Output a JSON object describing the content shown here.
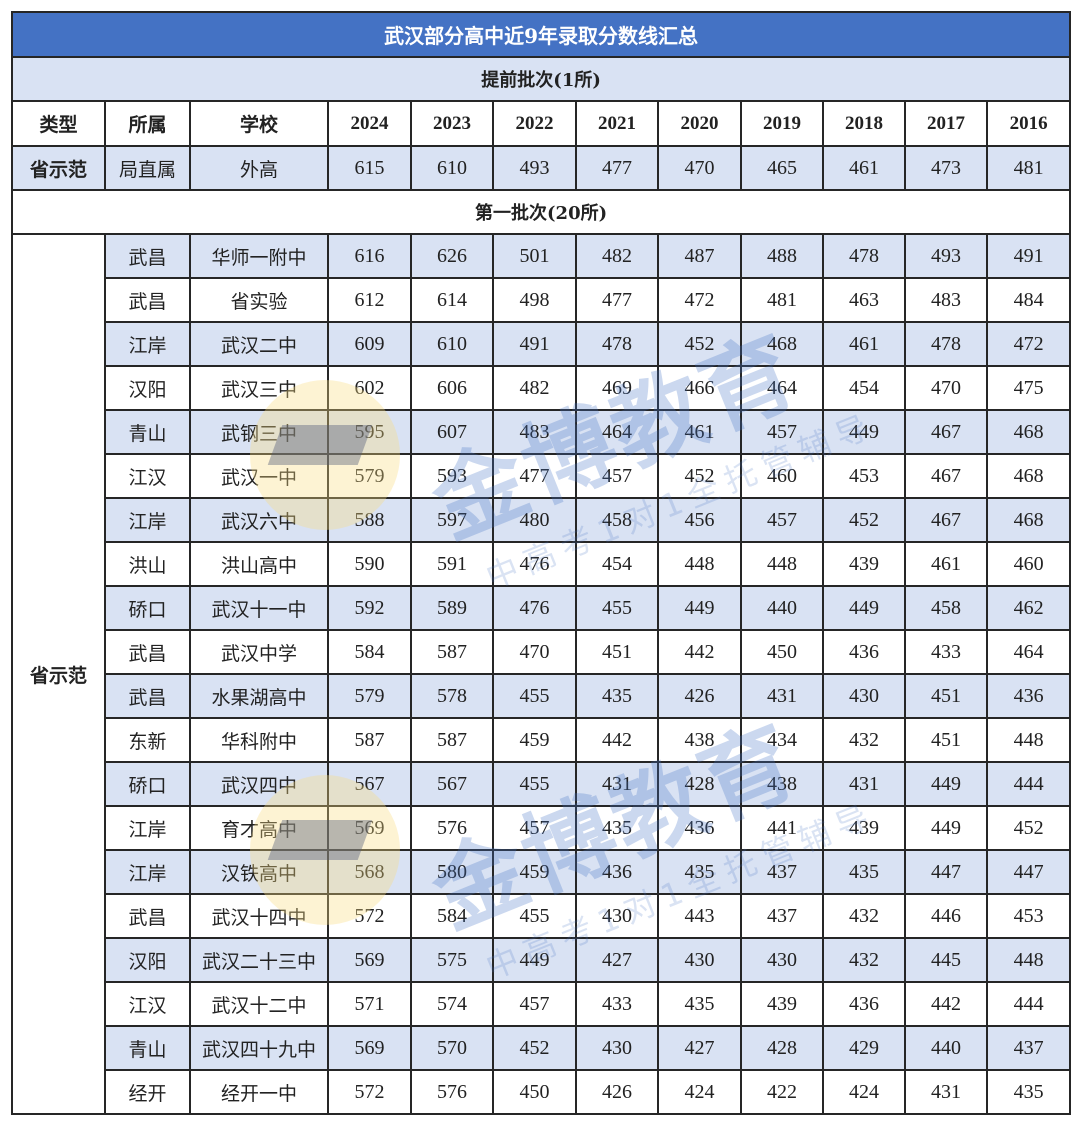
{
  "title": "武汉部分高中近9年录取分数线汇总",
  "colors": {
    "title_bg": "#4472c4",
    "stripe": "#d9e2f3",
    "border": "#262626"
  },
  "columns": [
    "类型",
    "所属",
    "学校",
    "2024",
    "2023",
    "2022",
    "2021",
    "2020",
    "2019",
    "2018",
    "2017",
    "2016"
  ],
  "sections": [
    {
      "label": "提前批次(1所)",
      "type": "省示范",
      "rows": [
        {
          "district": "局直属",
          "school": "外高",
          "scores": [
            615,
            610,
            493,
            477,
            470,
            465,
            461,
            473,
            481
          ]
        }
      ]
    },
    {
      "label": "第一批次(20所)",
      "type": "省示范",
      "rows": [
        {
          "district": "武昌",
          "school": "华师一附中",
          "scores": [
            616,
            626,
            501,
            482,
            487,
            488,
            478,
            493,
            491
          ]
        },
        {
          "district": "武昌",
          "school": "省实验",
          "scores": [
            612,
            614,
            498,
            477,
            472,
            481,
            463,
            483,
            484
          ]
        },
        {
          "district": "江岸",
          "school": "武汉二中",
          "scores": [
            609,
            610,
            491,
            478,
            452,
            468,
            461,
            478,
            472
          ]
        },
        {
          "district": "汉阳",
          "school": "武汉三中",
          "scores": [
            602,
            606,
            482,
            469,
            466,
            464,
            454,
            470,
            475
          ]
        },
        {
          "district": "青山",
          "school": "武钢三中",
          "scores": [
            595,
            607,
            483,
            464,
            461,
            457,
            449,
            467,
            468
          ]
        },
        {
          "district": "江汉",
          "school": "武汉一中",
          "scores": [
            579,
            593,
            477,
            457,
            452,
            460,
            453,
            467,
            468
          ]
        },
        {
          "district": "江岸",
          "school": "武汉六中",
          "scores": [
            588,
            597,
            480,
            458,
            456,
            457,
            452,
            467,
            468
          ]
        },
        {
          "district": "洪山",
          "school": "洪山高中",
          "scores": [
            590,
            591,
            476,
            454,
            448,
            448,
            439,
            461,
            460
          ]
        },
        {
          "district": "硚口",
          "school": "武汉十一中",
          "scores": [
            592,
            589,
            476,
            455,
            449,
            440,
            449,
            458,
            462
          ]
        },
        {
          "district": "武昌",
          "school": "武汉中学",
          "scores": [
            584,
            587,
            470,
            451,
            442,
            450,
            436,
            433,
            464
          ]
        },
        {
          "district": "武昌",
          "school": "水果湖高中",
          "scores": [
            579,
            578,
            455,
            435,
            426,
            431,
            430,
            451,
            436
          ]
        },
        {
          "district": "东新",
          "school": "华科附中",
          "scores": [
            587,
            587,
            459,
            442,
            438,
            434,
            432,
            451,
            448
          ]
        },
        {
          "district": "硚口",
          "school": "武汉四中",
          "scores": [
            567,
            567,
            455,
            431,
            428,
            438,
            431,
            449,
            444
          ]
        },
        {
          "district": "江岸",
          "school": "育才高中",
          "scores": [
            569,
            576,
            457,
            435,
            436,
            441,
            439,
            449,
            452
          ]
        },
        {
          "district": "江岸",
          "school": "汉铁高中",
          "scores": [
            568,
            580,
            459,
            436,
            435,
            437,
            435,
            447,
            447
          ]
        },
        {
          "district": "武昌",
          "school": "武汉十四中",
          "scores": [
            572,
            584,
            455,
            430,
            443,
            437,
            432,
            446,
            453
          ]
        },
        {
          "district": "汉阳",
          "school": "武汉二十三中",
          "scores": [
            569,
            575,
            449,
            427,
            430,
            430,
            432,
            445,
            448
          ]
        },
        {
          "district": "江汉",
          "school": "武汉十二中",
          "scores": [
            571,
            574,
            457,
            433,
            435,
            439,
            436,
            442,
            444
          ]
        },
        {
          "district": "青山",
          "school": "武汉四十九中",
          "scores": [
            569,
            570,
            452,
            430,
            427,
            428,
            429,
            440,
            437
          ]
        },
        {
          "district": "经开",
          "school": "经开一中",
          "scores": [
            572,
            576,
            450,
            426,
            424,
            422,
            424,
            431,
            435
          ]
        }
      ]
    }
  ],
  "watermark": {
    "brand": "金博教育",
    "slogan": "中高考1对1全托管辅导"
  }
}
